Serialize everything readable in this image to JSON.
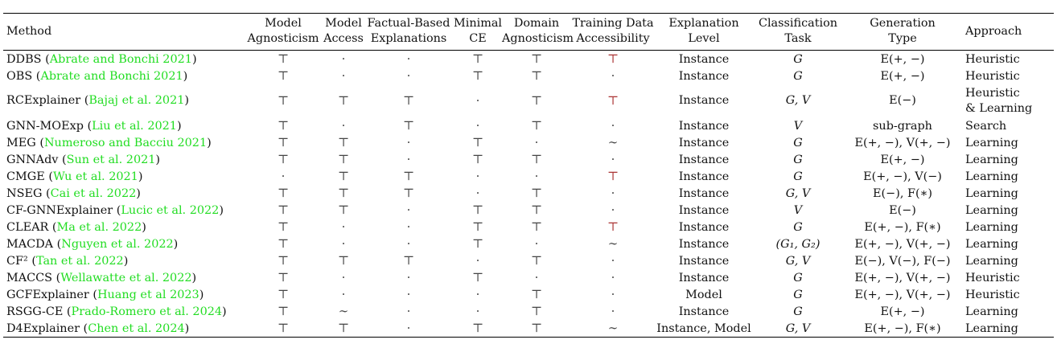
{
  "columns": [
    {
      "key": "method",
      "lines": [
        "Method"
      ]
    },
    {
      "key": "model_agnosticism",
      "lines": [
        "Model",
        "Agnosticism"
      ]
    },
    {
      "key": "model_access",
      "lines": [
        "Model",
        "Access"
      ]
    },
    {
      "key": "factual_based",
      "lines": [
        "Factual-Based",
        "Explanations"
      ]
    },
    {
      "key": "minimal_ce",
      "lines": [
        "Minimal",
        "CE"
      ]
    },
    {
      "key": "domain_agnosticism",
      "lines": [
        "Domain",
        "Agnosticism"
      ]
    },
    {
      "key": "training_data",
      "lines": [
        "Training Data",
        "Accessibility"
      ]
    },
    {
      "key": "explanation_level",
      "lines": [
        "Explanation",
        "Level"
      ]
    },
    {
      "key": "classification_task",
      "lines": [
        "Classification",
        "Task"
      ]
    },
    {
      "key": "generation_type",
      "lines": [
        "Generation",
        "Type"
      ]
    },
    {
      "key": "approach",
      "lines": [
        "Approach"
      ]
    }
  ],
  "rows": [
    {
      "method": "DDBS",
      "cite": "Abrate and Bonchi 2021",
      "model_agnosticism": "⊤",
      "model_access": "·",
      "factual_based": "·",
      "minimal_ce": "⊤",
      "domain_agnosticism": "⊤",
      "training_data": "⊤",
      "explanation_level": "Instance",
      "classification_task": "G",
      "generation_type": "E(+, −)",
      "approach": "Heuristic"
    },
    {
      "method": "OBS",
      "cite": "Abrate and Bonchi 2021",
      "model_agnosticism": "⊤",
      "model_access": "·",
      "factual_based": "·",
      "minimal_ce": "⊤",
      "domain_agnosticism": "⊤",
      "training_data": "·",
      "explanation_level": "Instance",
      "classification_task": "G",
      "generation_type": "E(+, −)",
      "approach": "Heuristic"
    },
    {
      "method": "RCExplainer",
      "cite": "Bajaj et al. 2021",
      "model_agnosticism": "⊤",
      "model_access": "⊤",
      "factual_based": "⊤",
      "minimal_ce": "·",
      "domain_agnosticism": "⊤",
      "training_data": "⊤",
      "explanation_level": "Instance",
      "classification_task": "G, V",
      "generation_type": "E(−)",
      "approach": "Heuristic",
      "approach2": "& Learning"
    },
    {
      "method": "GNN-MOExp",
      "cite": "Liu et al. 2021",
      "model_agnosticism": "⊤",
      "model_access": "·",
      "factual_based": "⊤",
      "minimal_ce": "·",
      "domain_agnosticism": "⊤",
      "training_data": "·",
      "explanation_level": "Instance",
      "classification_task": "V",
      "generation_type": "sub-graph",
      "approach": "Search"
    },
    {
      "method": "MEG",
      "cite": "Numeroso and Bacciu 2021",
      "model_agnosticism": "⊤",
      "model_access": "⊤",
      "factual_based": "·",
      "minimal_ce": "⊤",
      "domain_agnosticism": "·",
      "training_data": "∼",
      "explanation_level": "Instance",
      "classification_task": "G",
      "generation_type": "E(+, −), V(+, −)",
      "approach": "Learning"
    },
    {
      "method": "GNNAdv",
      "cite": "Sun et al. 2021",
      "model_agnosticism": "⊤",
      "model_access": "⊤",
      "factual_based": "·",
      "minimal_ce": "⊤",
      "domain_agnosticism": "⊤",
      "training_data": "·",
      "explanation_level": "Instance",
      "classification_task": "G",
      "generation_type": "E(+, −)",
      "approach": "Learning"
    },
    {
      "method": "CMGE",
      "cite": "Wu et al. 2021",
      "model_agnosticism": "·",
      "model_access": "⊤",
      "factual_based": "⊤",
      "minimal_ce": "·",
      "domain_agnosticism": "·",
      "training_data": "⊤",
      "explanation_level": "Instance",
      "classification_task": "G",
      "generation_type": "E(+, −), V(−)",
      "approach": "Learning"
    },
    {
      "method": "NSEG",
      "cite": "Cai et al. 2022",
      "model_agnosticism": "⊤",
      "model_access": "⊤",
      "factual_based": "⊤",
      "minimal_ce": "·",
      "domain_agnosticism": "⊤",
      "training_data": "·",
      "explanation_level": "Instance",
      "classification_task": "G, V",
      "generation_type": "E(−), F(∗)",
      "approach": "Learning"
    },
    {
      "method": "CF-GNNExplainer",
      "cite": "Lucic et al. 2022",
      "model_agnosticism": "⊤",
      "model_access": "⊤",
      "factual_based": "·",
      "minimal_ce": "⊤",
      "domain_agnosticism": "⊤",
      "training_data": "·",
      "explanation_level": "Instance",
      "classification_task": "V",
      "generation_type": "E(−)",
      "approach": "Learning"
    },
    {
      "method": "CLEAR",
      "cite": "Ma et al. 2022",
      "model_agnosticism": "⊤",
      "model_access": "·",
      "factual_based": "·",
      "minimal_ce": "⊤",
      "domain_agnosticism": "⊤",
      "training_data": "⊤",
      "explanation_level": "Instance",
      "classification_task": "G",
      "generation_type": "E(+, −), F(∗)",
      "approach": "Learning"
    },
    {
      "method": "MACDA",
      "cite": "Nguyen et al. 2022",
      "model_agnosticism": "⊤",
      "model_access": "·",
      "factual_based": "·",
      "minimal_ce": "⊤",
      "domain_agnosticism": "·",
      "training_data": "∼",
      "explanation_level": "Instance",
      "classification_task": "(G₁, G₂)",
      "generation_type": "E(+, −), V(+, −)",
      "approach": "Learning"
    },
    {
      "method": "CF²",
      "cite": "Tan et al. 2022",
      "model_agnosticism": "⊤",
      "model_access": "⊤",
      "factual_based": "⊤",
      "minimal_ce": "·",
      "domain_agnosticism": "⊤",
      "training_data": "·",
      "explanation_level": "Instance",
      "classification_task": "G, V",
      "generation_type": "E(−), V(−), F(−)",
      "approach": "Learning"
    },
    {
      "method": "MACCS",
      "cite": "Wellawatte et al. 2022",
      "model_agnosticism": "⊤",
      "model_access": "·",
      "factual_based": "·",
      "minimal_ce": "⊤",
      "domain_agnosticism": "·",
      "training_data": "·",
      "explanation_level": "Instance",
      "classification_task": "G",
      "generation_type": "E(+, −), V(+, −)",
      "approach": "Heuristic"
    },
    {
      "method": "GCFExplainer",
      "cite": "Huang et al 2023",
      "model_agnosticism": "⊤",
      "model_access": "·",
      "factual_based": "·",
      "minimal_ce": "·",
      "domain_agnosticism": "⊤",
      "training_data": "·",
      "explanation_level": "Model",
      "classification_task": "G",
      "generation_type": "E(+, −), V(+, −)",
      "approach": "Heuristic"
    },
    {
      "method": "RSGG-CE",
      "cite": "Prado-Romero et al. 2024",
      "model_agnosticism": "⊤",
      "model_access": "∼",
      "factual_based": "·",
      "minimal_ce": "·",
      "domain_agnosticism": "⊤",
      "training_data": "·",
      "explanation_level": "Instance",
      "classification_task": "G",
      "generation_type": "E(+, −)",
      "approach": "Learning"
    },
    {
      "method": "D4Explainer",
      "cite": "Chen et al. 2024",
      "model_agnosticism": "⊤",
      "model_access": "⊤",
      "factual_based": "·",
      "minimal_ce": "⊤",
      "domain_agnosticism": "⊤",
      "training_data": "∼",
      "explanation_level": "Instance, Model",
      "classification_task": "G, V",
      "generation_type": "E(+, −), F(∗)",
      "approach": "Learning"
    }
  ]
}
